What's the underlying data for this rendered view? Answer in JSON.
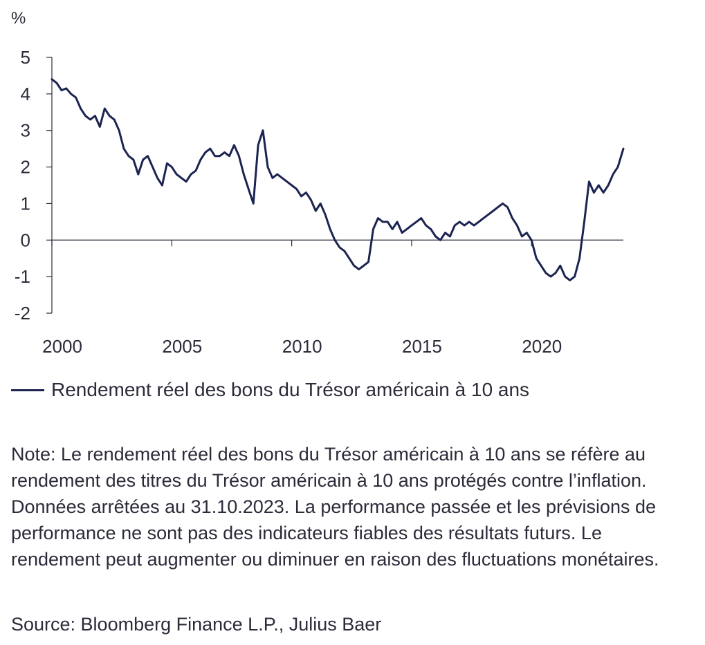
{
  "chart_data": {
    "type": "line",
    "y_unit": "%",
    "ylim": [
      -2,
      5
    ],
    "y_ticks": [
      "5",
      "4",
      "3",
      "2",
      "1",
      "0",
      "-1",
      "-2"
    ],
    "y_tick_values": [
      5,
      4,
      3,
      2,
      1,
      0,
      -1,
      -2
    ],
    "xlim": [
      2000.0,
      2023.83
    ],
    "x_ticks": [
      "2000",
      "2005",
      "2010",
      "2015",
      "2020"
    ],
    "x_tick_values": [
      2000,
      2005,
      2010,
      2015,
      2020
    ],
    "grid": false,
    "legend_position": "bottom-left",
    "series": [
      {
        "name": "Rendement réel des bons du Trésor américain à 10 ans",
        "color": "#1b2350",
        "x": [
          2000.0,
          2000.2,
          2000.4,
          2000.6,
          2000.8,
          2001.0,
          2001.2,
          2001.4,
          2001.6,
          2001.8,
          2002.0,
          2002.2,
          2002.4,
          2002.6,
          2002.8,
          2003.0,
          2003.2,
          2003.4,
          2003.6,
          2003.8,
          2004.0,
          2004.2,
          2004.4,
          2004.6,
          2004.8,
          2005.0,
          2005.2,
          2005.4,
          2005.6,
          2005.8,
          2006.0,
          2006.2,
          2006.4,
          2006.6,
          2006.8,
          2007.0,
          2007.2,
          2007.4,
          2007.6,
          2007.8,
          2008.0,
          2008.2,
          2008.4,
          2008.6,
          2008.8,
          2009.0,
          2009.2,
          2009.4,
          2009.6,
          2009.8,
          2010.0,
          2010.2,
          2010.4,
          2010.6,
          2010.8,
          2011.0,
          2011.2,
          2011.4,
          2011.6,
          2011.8,
          2012.0,
          2012.2,
          2012.4,
          2012.6,
          2012.8,
          2013.0,
          2013.2,
          2013.4,
          2013.6,
          2013.8,
          2014.0,
          2014.2,
          2014.4,
          2014.6,
          2014.8,
          2015.0,
          2015.2,
          2015.4,
          2015.6,
          2015.8,
          2016.0,
          2016.2,
          2016.4,
          2016.6,
          2016.8,
          2017.0,
          2017.2,
          2017.4,
          2017.6,
          2017.8,
          2018.0,
          2018.2,
          2018.4,
          2018.6,
          2018.8,
          2019.0,
          2019.2,
          2019.4,
          2019.6,
          2019.8,
          2020.0,
          2020.2,
          2020.4,
          2020.6,
          2020.8,
          2021.0,
          2021.2,
          2021.4,
          2021.6,
          2021.8,
          2022.0,
          2022.2,
          2022.4,
          2022.6,
          2022.8,
          2023.0,
          2023.2,
          2023.4,
          2023.6,
          2023.83
        ],
        "values": [
          4.4,
          4.3,
          4.1,
          4.15,
          4.0,
          3.9,
          3.6,
          3.4,
          3.3,
          3.4,
          3.1,
          3.6,
          3.4,
          3.3,
          3.0,
          2.5,
          2.3,
          2.2,
          1.8,
          2.2,
          2.3,
          2.0,
          1.7,
          1.5,
          2.1,
          2.0,
          1.8,
          1.7,
          1.6,
          1.8,
          1.9,
          2.2,
          2.4,
          2.5,
          2.3,
          2.3,
          2.4,
          2.3,
          2.6,
          2.3,
          1.8,
          1.4,
          1.0,
          2.6,
          3.0,
          2.0,
          1.7,
          1.8,
          1.7,
          1.6,
          1.5,
          1.4,
          1.2,
          1.3,
          1.1,
          0.8,
          1.0,
          0.7,
          0.3,
          0.0,
          -0.2,
          -0.3,
          -0.5,
          -0.7,
          -0.8,
          -0.7,
          -0.6,
          0.3,
          0.6,
          0.5,
          0.5,
          0.3,
          0.5,
          0.2,
          0.3,
          0.4,
          0.5,
          0.6,
          0.4,
          0.3,
          0.1,
          0.0,
          0.2,
          0.1,
          0.4,
          0.5,
          0.4,
          0.5,
          0.4,
          0.5,
          0.6,
          0.7,
          0.8,
          0.9,
          1.0,
          0.9,
          0.6,
          0.4,
          0.1,
          0.2,
          0.0,
          -0.5,
          -0.7,
          -0.9,
          -1.0,
          -0.9,
          -0.7,
          -1.0,
          -1.1,
          -1.0,
          -0.5,
          0.5,
          1.6,
          1.3,
          1.5,
          1.3,
          1.5,
          1.8,
          2.0,
          2.5
        ]
      }
    ]
  },
  "legend": {
    "label": "Rendement réel des bons du Trésor américain à 10 ans"
  },
  "note": "Note: Le rendement réel des bons du Trésor américain à 10 ans se réfère au rendement des titres du Trésor américain à 10 ans protégés contre l’inflation. Données arrêtées au 31.10.2023. La performance passée et les prévisions de performance ne sont pas des indicateurs fiables des résultats futurs. Le rendement peut augmenter ou diminuer en raison des fluctuations monétaires.",
  "source": "Source: Bloomberg Finance L.P., Julius Baer"
}
